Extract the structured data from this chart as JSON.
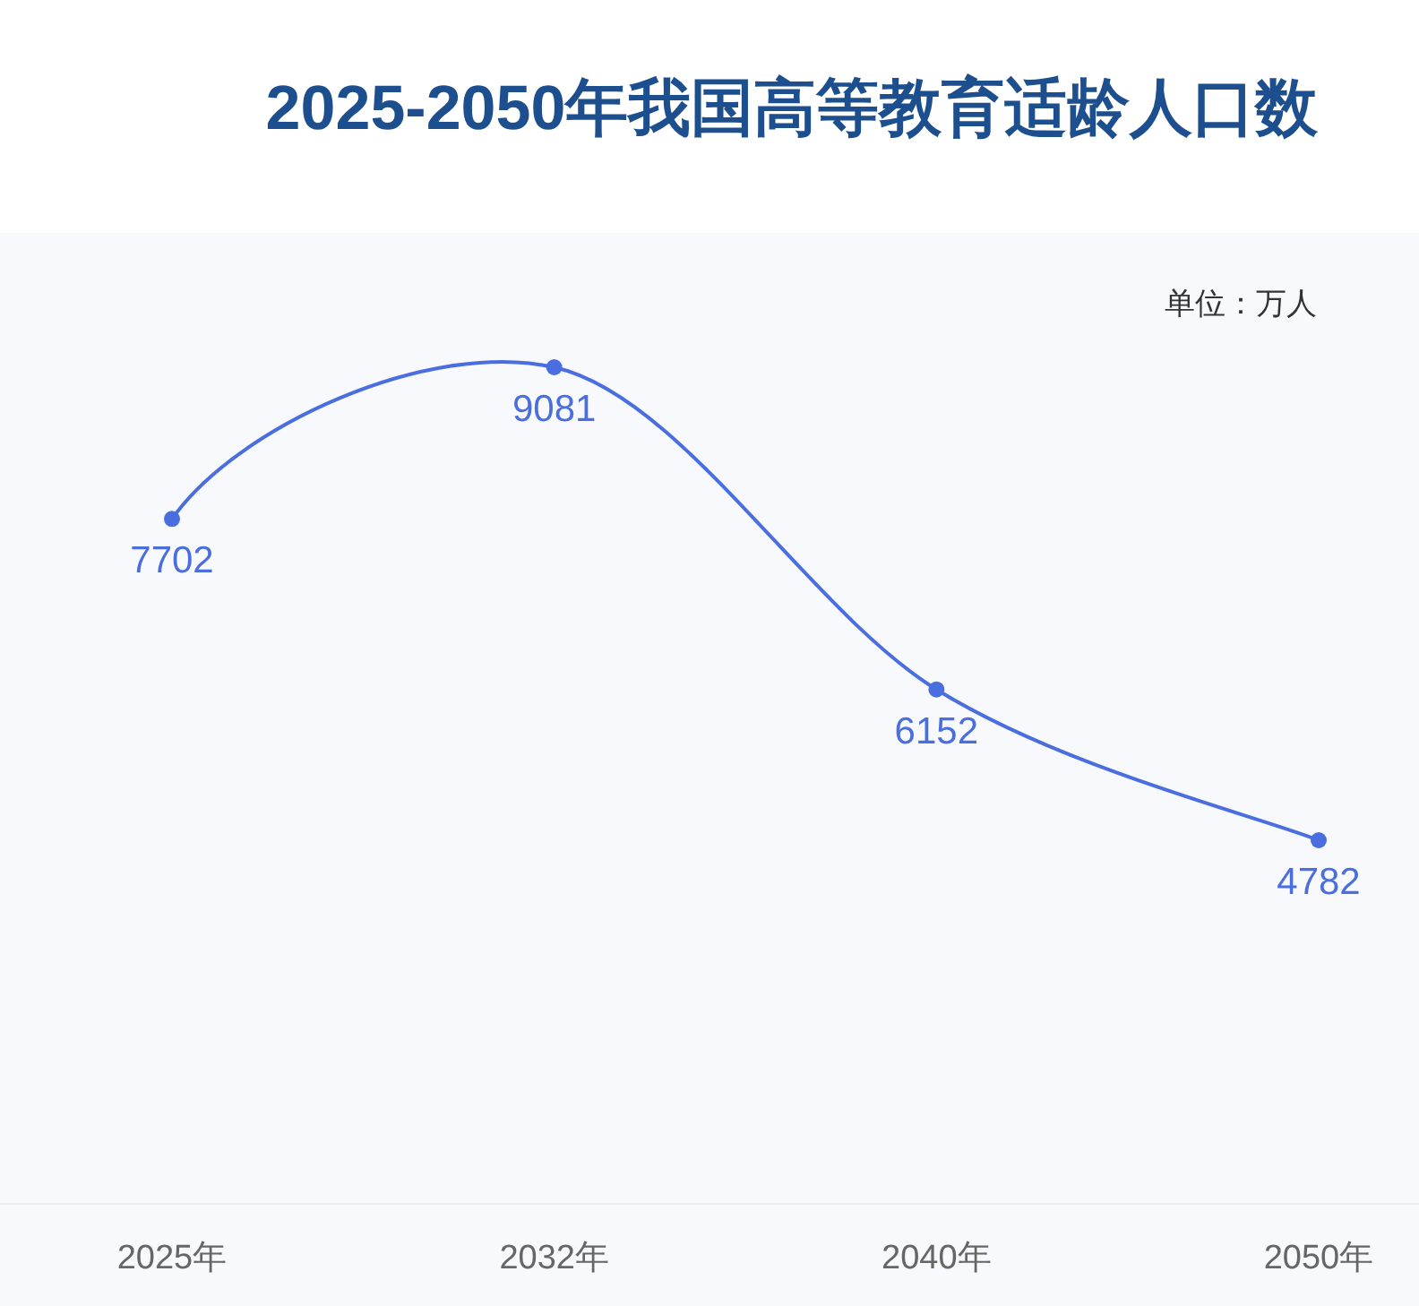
{
  "chart_data": {
    "type": "line",
    "title": "2025-2050年我国高等教育适龄人口数",
    "annotations": [
      "单位：万人"
    ],
    "categories": [
      "2025年",
      "2032年",
      "2040年",
      "2050年"
    ],
    "series": [
      {
        "color": "#4a6ee0",
        "values": [
          7702,
          9081,
          6152,
          4782
        ]
      }
    ],
    "data_labels": true,
    "marker": "circle",
    "line_style": "solid"
  }
}
